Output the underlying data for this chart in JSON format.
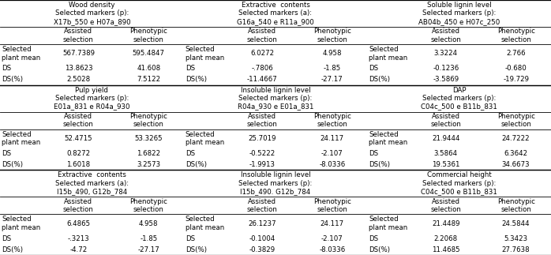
{
  "background_color": "#ffffff",
  "font_size": 6.2,
  "sections": [
    {
      "header_lines": [
        "Wood density",
        "Selected markers (p):",
        "X17b_550 e H07a_890"
      ],
      "rows": [
        {
          "label": "Selected\nplant mean",
          "v1": "567.7389",
          "v2": "595.4847"
        },
        {
          "label": "DS",
          "v1": "13.8623",
          "v2": "41.608"
        },
        {
          "label": "DS(%)",
          "v1": "2.5028",
          "v2": "7.5122"
        }
      ]
    },
    {
      "header_lines": [
        "Extractive  contents",
        "Selected markers (a):",
        "G16a_540 e R11a_900"
      ],
      "rows": [
        {
          "label": "Selected\nplant mean",
          "v1": "6.0272",
          "v2": "4.958"
        },
        {
          "label": "DS",
          "v1": "-.7806",
          "v2": "-1.85"
        },
        {
          "label": "DS(%)",
          "v1": "-11.4667",
          "v2": "-27.17"
        }
      ]
    },
    {
      "header_lines": [
        "Soluble lignin level",
        "Selected markers (p):",
        "AB04b_450 e H07c_250"
      ],
      "rows": [
        {
          "label": "Selected\nplant mean",
          "v1": "3.3224",
          "v2": "2.766"
        },
        {
          "label": "DS",
          "v1": "-0.1236",
          "v2": "-0.680"
        },
        {
          "label": "DS(%)",
          "v1": "-3.5869",
          "v2": "-19.729"
        }
      ]
    },
    {
      "header_lines": [
        "Pulp yield",
        "Selected markers (p):",
        "E01a_831 e R04a_930"
      ],
      "rows": [
        {
          "label": "Selected\nplant mean",
          "v1": "52.4715",
          "v2": "53.3265"
        },
        {
          "label": "DS",
          "v1": "0.8272",
          "v2": "1.6822"
        },
        {
          "label": "DS(%)",
          "v1": "1.6018",
          "v2": "3.2573"
        }
      ]
    },
    {
      "header_lines": [
        "Insoluble lignin level",
        "Selected markers (p):",
        "R04a_930 e E01a_831"
      ],
      "rows": [
        {
          "label": "Selected\nplant mean",
          "v1": "25.7019",
          "v2": "24.117"
        },
        {
          "label": "DS",
          "v1": "-0.5222",
          "v2": "-2.107"
        },
        {
          "label": "DS(%)",
          "v1": "-1.9913",
          "v2": "-8.0336"
        }
      ]
    },
    {
      "header_lines": [
        "DAP",
        "Selected markers (p):",
        "C04c_500 e B11b_831"
      ],
      "rows": [
        {
          "label": "Selected\nplant mean",
          "v1": "21.9444",
          "v2": "24.7222"
        },
        {
          "label": "DS",
          "v1": "3.5864",
          "v2": "6.3642"
        },
        {
          "label": "DS(%)",
          "v1": "19.5361",
          "v2": "34.6673"
        }
      ]
    },
    {
      "header_lines": [
        "Extractive  contents",
        "Selected markers (a):",
        "I15b_490, G12b_784"
      ],
      "rows": [
        {
          "label": "Selected\nplant mean",
          "v1": "6.4865",
          "v2": "4.958"
        },
        {
          "label": "DS",
          "v1": "-.3213",
          "v2": "-1.85"
        },
        {
          "label": "DS(%)",
          "v1": "-4.72",
          "v2": "-27.17"
        }
      ]
    },
    {
      "header_lines": [
        "Insoluble lignin level",
        "Selected markers (p):",
        "I15b_490. G12b_784"
      ],
      "rows": [
        {
          "label": "Selected\nplant mean",
          "v1": "26.1237",
          "v2": "24.117"
        },
        {
          "label": "DS",
          "v1": "-0.1004",
          "v2": "-2.107"
        },
        {
          "label": "DS(%)",
          "v1": "-0.3829",
          "v2": "-8.0336"
        }
      ]
    },
    {
      "header_lines": [
        "Commercial height",
        "Selected markers (p):",
        "C04c_500 e B11b_831"
      ],
      "rows": [
        {
          "label": "Selected\nplant mean",
          "v1": "21.4489",
          "v2": "24.5844"
        },
        {
          "label": "DS",
          "v1": "2.2068",
          "v2": "5.3423"
        },
        {
          "label": "DS(%)",
          "v1": "11.4685",
          "v2": "27.7638"
        }
      ]
    }
  ],
  "col1_label": "Assisted\nselection",
  "col2_label": "Phenotypic\nselection"
}
